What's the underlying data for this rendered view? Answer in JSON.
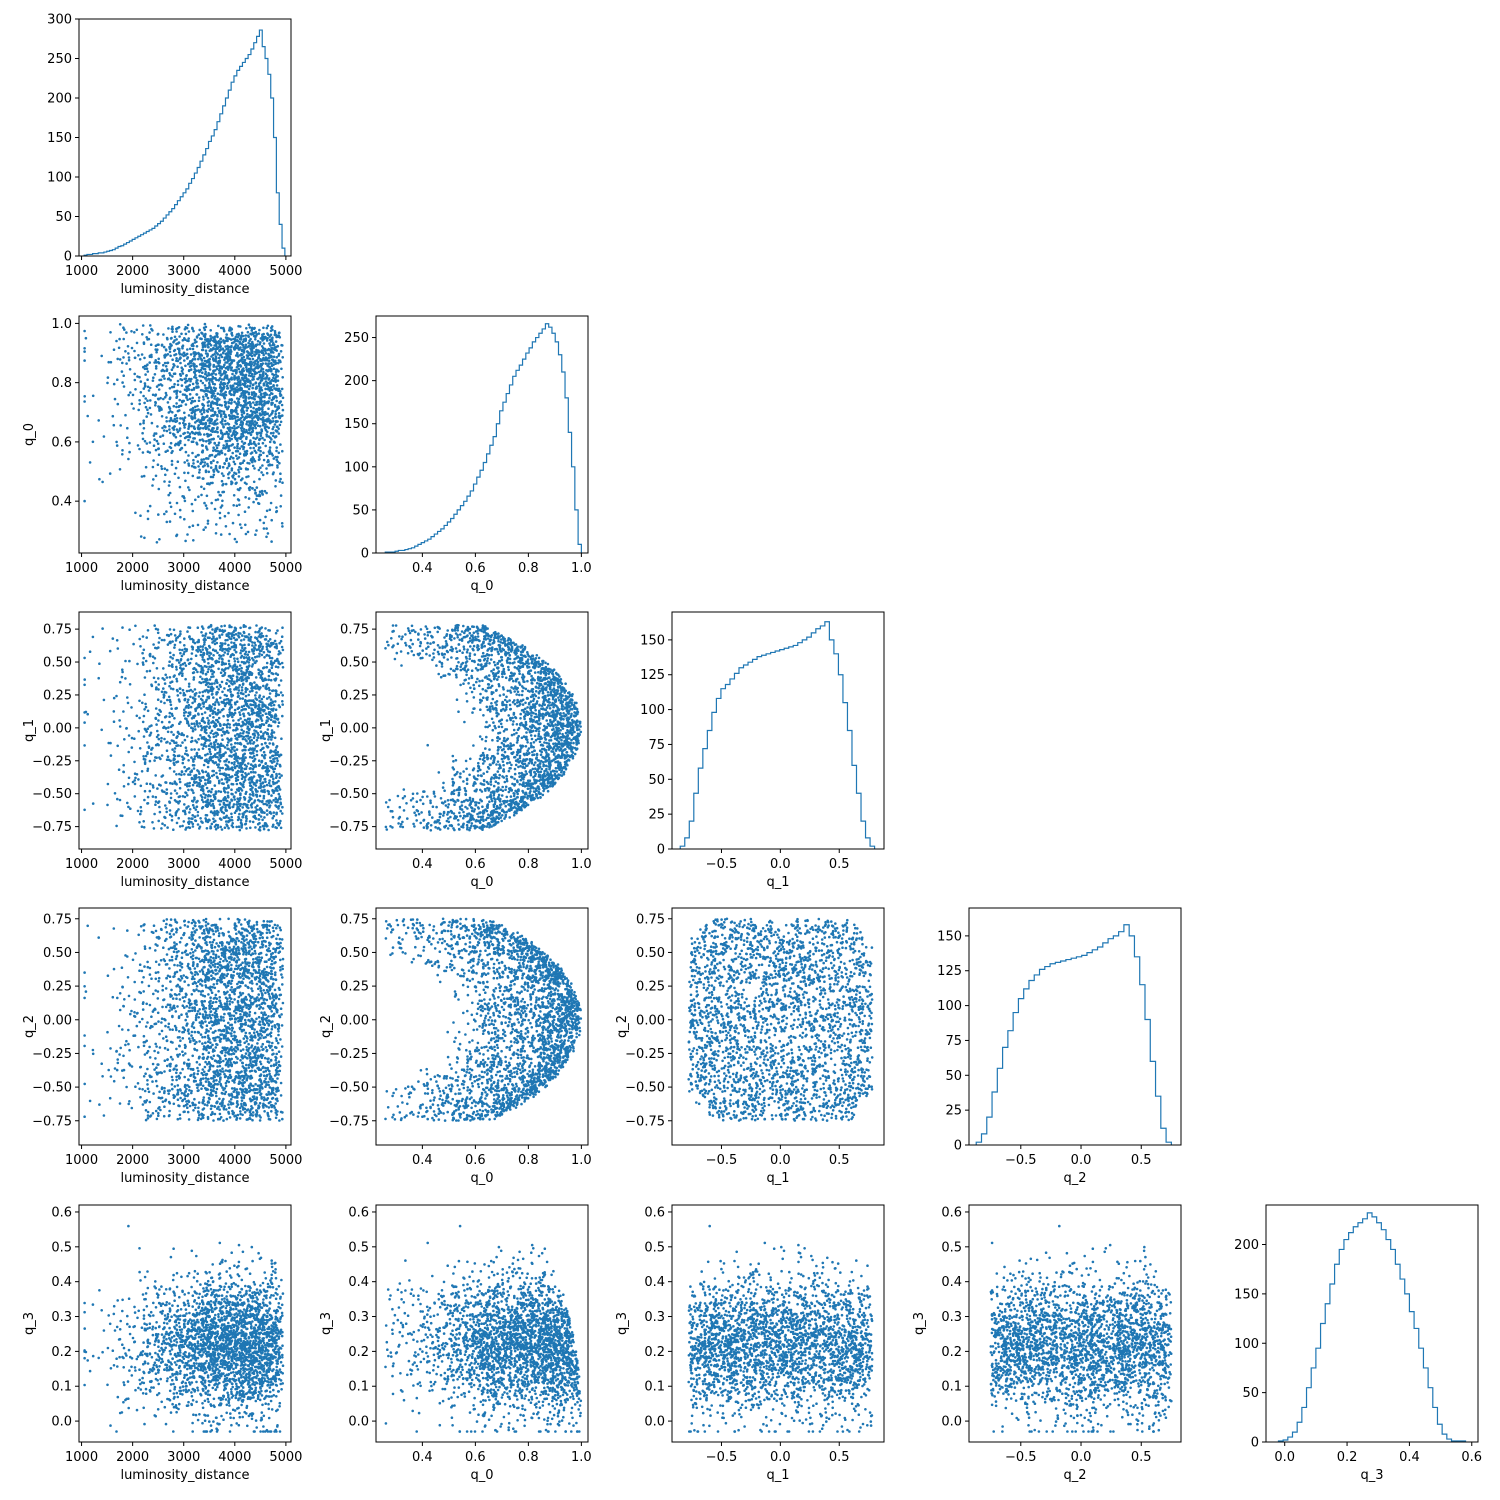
{
  "colors": {
    "series": "#1f77b4",
    "axes": "#000000",
    "background": "#ffffff"
  },
  "chart_data": {
    "type": "corner",
    "description": "",
    "variables": [
      "luminosity_distance",
      "q_0",
      "q_1",
      "q_2",
      "q_3"
    ],
    "ranges": {
      "luminosity_distance": [
        950,
        5100
      ],
      "q_0": [
        0.225,
        1.025
      ],
      "q_1": [
        -0.92,
        0.88
      ],
      "q_2": [
        -0.93,
        0.83
      ],
      "q_3": [
        -0.06,
        0.62
      ]
    },
    "ticks": {
      "luminosity_distance": [
        1000,
        2000,
        3000,
        4000,
        5000
      ],
      "q_0": [
        0.4,
        0.6,
        0.8,
        1.0
      ],
      "q_1": [
        -0.5,
        0.0,
        0.5
      ],
      "q_1_y": [
        -0.75,
        -0.5,
        -0.25,
        0.0,
        0.25,
        0.5,
        0.75
      ],
      "q_2": [
        -0.5,
        0.0,
        0.5
      ],
      "q_2_y": [
        -0.75,
        -0.5,
        -0.25,
        0.0,
        0.25,
        0.5,
        0.75
      ],
      "q_3": [
        0.0,
        0.2,
        0.4,
        0.6
      ],
      "q_3_y": [
        0.0,
        0.1,
        0.2,
        0.3,
        0.4,
        0.5,
        0.6
      ],
      "luminosity_distance_y": [
        0.4,
        0.6,
        0.8,
        1.0
      ]
    },
    "tick_labels": {
      "luminosity_distance": [
        "1000",
        "2000",
        "3000",
        "4000",
        "5000"
      ],
      "q_0": [
        "0.4",
        "0.6",
        "0.8",
        "1.0"
      ],
      "q_1": [
        "−0.5",
        "0.0",
        "0.5"
      ],
      "q_2": [
        "−0.5",
        "0.0",
        "0.5"
      ],
      "q_3": [
        "0.0",
        "0.2",
        "0.4",
        "0.6"
      ],
      "q_0_y": [
        "0.4",
        "0.6",
        "0.8",
        "1.0"
      ],
      "q_1_y": [
        "−0.75",
        "−0.50",
        "−0.25",
        "0.00",
        "0.25",
        "0.50",
        "0.75"
      ],
      "q_2_y": [
        "−0.75",
        "−0.50",
        "−0.25",
        "0.00",
        "0.25",
        "0.50",
        "0.75"
      ],
      "q_3_y": [
        "0.0",
        "0.1",
        "0.2",
        "0.3",
        "0.4",
        "0.5",
        "0.6"
      ]
    },
    "histograms": [
      {
        "variable": "luminosity_distance",
        "ylim": [
          0,
          300
        ],
        "yticks": [
          0,
          50,
          100,
          150,
          200,
          250,
          300
        ],
        "bin_range": [
          1050,
          4980
        ],
        "counts": [
          1,
          2,
          2,
          3,
          3,
          4,
          4,
          5,
          6,
          7,
          8,
          10,
          12,
          13,
          15,
          17,
          19,
          21,
          23,
          25,
          27,
          29,
          31,
          33,
          35,
          38,
          41,
          44,
          48,
          52,
          56,
          60,
          65,
          70,
          75,
          80,
          85,
          92,
          98,
          105,
          112,
          120,
          128,
          136,
          145,
          152,
          160,
          170,
          180,
          190,
          200,
          210,
          220,
          228,
          235,
          240,
          245,
          250,
          255,
          262,
          270,
          278,
          286,
          265,
          250,
          230,
          200,
          150,
          80,
          40,
          10
        ]
      },
      {
        "variable": "q_0",
        "ylim": [
          0,
          275
        ],
        "yticks": [
          0,
          50,
          100,
          150,
          200,
          250
        ],
        "bin_range": [
          0.26,
          1.0
        ],
        "counts": [
          1,
          1,
          1,
          2,
          3,
          3,
          4,
          5,
          6,
          8,
          10,
          12,
          14,
          16,
          19,
          22,
          25,
          28,
          32,
          36,
          40,
          45,
          50,
          55,
          60,
          66,
          72,
          80,
          88,
          96,
          105,
          115,
          125,
          135,
          150,
          165,
          175,
          185,
          195,
          205,
          212,
          218,
          225,
          232,
          238,
          245,
          250,
          255,
          260,
          266,
          262,
          255,
          245,
          230,
          210,
          180,
          140,
          100,
          50,
          10
        ]
      },
      {
        "variable": "q_1",
        "ylim": [
          0,
          170
        ],
        "yticks": [
          0,
          25,
          50,
          75,
          100,
          125,
          150
        ],
        "bin_range": [
          -0.85,
          0.8
        ],
        "counts": [
          2,
          8,
          20,
          40,
          58,
          72,
          85,
          98,
          108,
          115,
          118,
          122,
          126,
          130,
          132,
          134,
          136,
          138,
          139,
          140,
          141,
          142,
          143,
          144,
          145,
          146,
          148,
          150,
          152,
          155,
          158,
          160,
          163,
          150,
          140,
          125,
          105,
          85,
          60,
          40,
          20,
          8,
          2
        ]
      },
      {
        "variable": "q_2",
        "ylim": [
          0,
          170
        ],
        "yticks": [
          0,
          25,
          50,
          75,
          100,
          125,
          150
        ],
        "bin_range": [
          -0.87,
          0.75
        ],
        "counts": [
          2,
          8,
          20,
          38,
          55,
          70,
          82,
          95,
          105,
          112,
          118,
          122,
          126,
          128,
          130,
          131,
          132,
          133,
          134,
          135,
          136,
          138,
          140,
          142,
          145,
          148,
          150,
          153,
          158,
          150,
          135,
          115,
          90,
          60,
          35,
          12,
          2
        ]
      },
      {
        "variable": "q_3",
        "ylim": [
          0,
          240
        ],
        "yticks": [
          0,
          50,
          100,
          150,
          200
        ],
        "bin_range": [
          -0.02,
          0.58
        ],
        "counts": [
          1,
          2,
          5,
          10,
          20,
          35,
          55,
          75,
          95,
          120,
          140,
          160,
          180,
          195,
          205,
          212,
          218,
          222,
          226,
          232,
          228,
          222,
          215,
          205,
          195,
          180,
          165,
          150,
          132,
          115,
          95,
          75,
          55,
          35,
          18,
          8,
          3,
          1,
          1,
          1
        ]
      }
    ],
    "scatter_panels": [
      {
        "x": "luminosity_distance",
        "y": "q_0",
        "shape": "ld_q0"
      },
      {
        "x": "luminosity_distance",
        "y": "q_1",
        "shape": "ld_q1"
      },
      {
        "x": "q_0",
        "y": "q_1",
        "shape": "q0_q1"
      },
      {
        "x": "q_1",
        "y": "q_1",
        "shape": "hist"
      },
      {
        "x": "luminosity_distance",
        "y": "q_2",
        "shape": "ld_q2"
      },
      {
        "x": "q_0",
        "y": "q_2",
        "shape": "q0_q2"
      },
      {
        "x": "q_1",
        "y": "q_2",
        "shape": "q1_q2"
      },
      {
        "x": "luminosity_distance",
        "y": "q_3",
        "shape": "ld_q3"
      },
      {
        "x": "q_0",
        "y": "q_3",
        "shape": "q0_q3"
      },
      {
        "x": "q_1",
        "y": "q_3",
        "shape": "q1_q3"
      },
      {
        "x": "q_2",
        "y": "q_3",
        "shape": "q2_q3"
      }
    ]
  }
}
